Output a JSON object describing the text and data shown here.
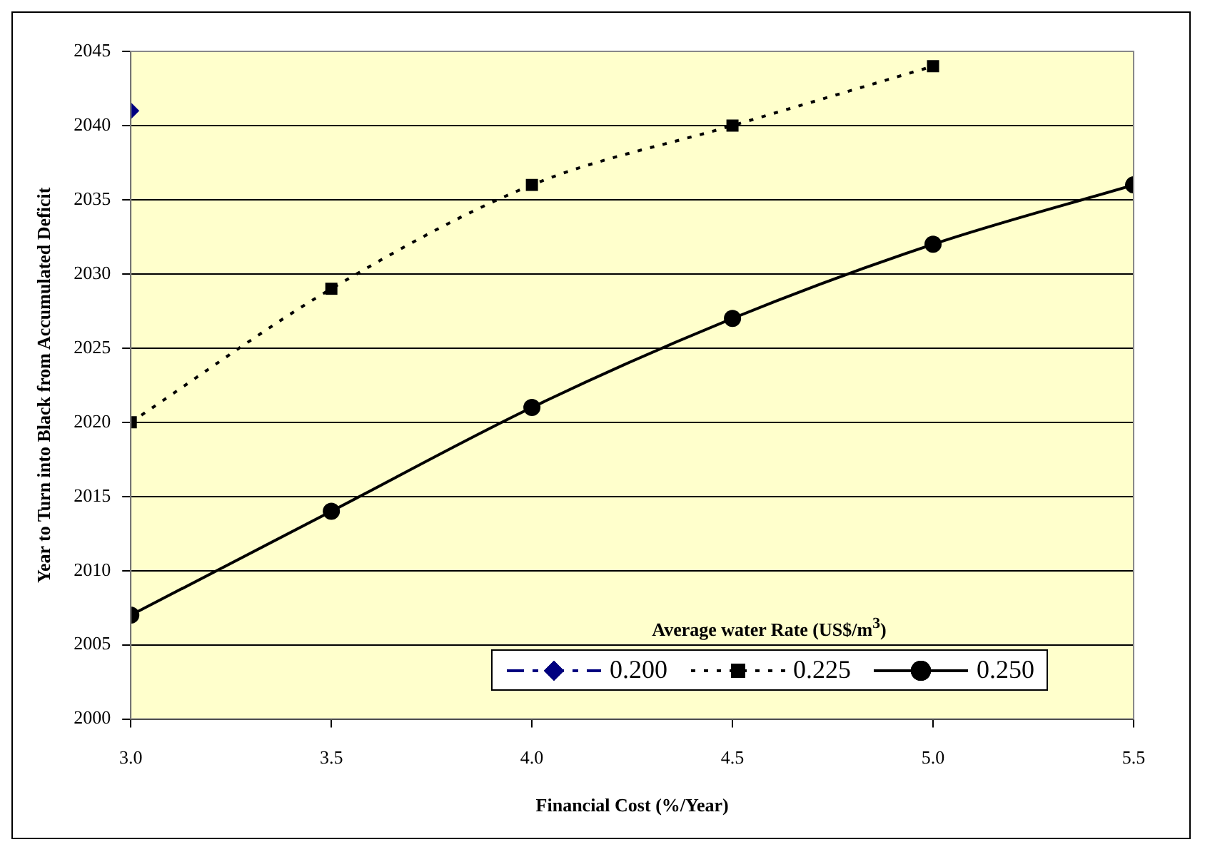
{
  "chart_data": {
    "type": "line",
    "xlabel": "Financial Cost (%/Year)",
    "ylabel": "Year to Turn into Black from Accumulated Deficit",
    "legend_title": "Average water Rate (US$/m$^{3}$)",
    "x": [
      3.0,
      3.5,
      4.0,
      4.5,
      5.0,
      5.5
    ],
    "xlim": [
      3.0,
      5.5
    ],
    "xticks": [
      {
        "value": 3,
        "label": "3.0"
      },
      {
        "value": 3.5,
        "label": "3.5"
      },
      {
        "value": 4,
        "label": "4.0"
      },
      {
        "value": 4.5,
        "label": "4.5"
      },
      {
        "value": 5,
        "label": "5.0"
      },
      {
        "value": 5.5,
        "label": "5.5"
      }
    ],
    "ylim": [
      2000,
      2045
    ],
    "yticks": [
      2000,
      2005,
      2010,
      2015,
      2020,
      2025,
      2030,
      2035,
      2040,
      2045
    ],
    "grid": "y",
    "legend": "bottom right",
    "series": [
      {
        "name": "0.200",
        "color": "#000080",
        "marker": "diamond",
        "line_style": "dashed",
        "values": [
          2041,
          null,
          null,
          null,
          null,
          null
        ]
      },
      {
        "name": "0.225",
        "color": "#000000",
        "marker": "square",
        "line_style": "dotted",
        "values": [
          2020,
          2029,
          2036,
          2040,
          2044,
          null
        ]
      },
      {
        "name": "0.250",
        "color": "#000000",
        "marker": "circle",
        "line_style": "solid",
        "values": [
          2007,
          2014,
          2021,
          2027,
          2032,
          2036
        ]
      }
    ]
  }
}
